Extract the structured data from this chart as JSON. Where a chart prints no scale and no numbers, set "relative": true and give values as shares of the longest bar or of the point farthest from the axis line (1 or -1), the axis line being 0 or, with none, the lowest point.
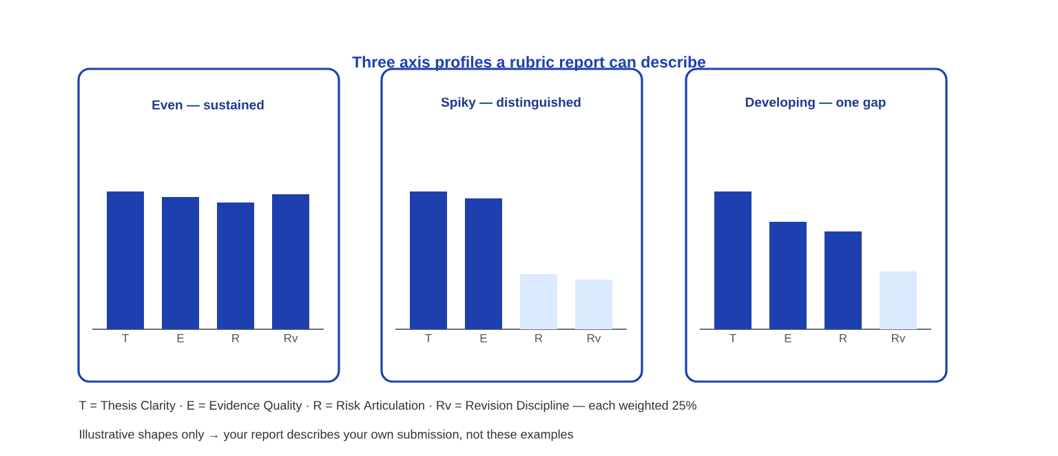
{
  "chart_data": [
    {
      "type": "other",
      "title": "Three axis profiles a rubric report can describe",
      "color": "#1e40af"
    },
    {
      "type": "bar",
      "title": "Even — sustained",
      "relative": true,
      "categories": [
        "T",
        "E",
        "R",
        "Rv"
      ],
      "values": [
        1,
        0.96,
        0.92,
        0.98
      ],
      "colors": [
        "#1e40af",
        "#1e40af",
        "#1e40af",
        "#1e40af"
      ]
    },
    {
      "type": "bar",
      "title": "Spiky — distinguished",
      "relative": true,
      "categories": [
        "T",
        "E",
        "R",
        "Rv"
      ],
      "values": [
        1,
        0.95,
        0.4,
        0.36
      ],
      "colors": [
        "#1e40af",
        "#1e40af",
        "#dbeafe",
        "#dbeafe"
      ]
    },
    {
      "type": "bar",
      "title": "Developing — one gap",
      "relative": true,
      "categories": [
        "T",
        "E",
        "R",
        "Rv"
      ],
      "values": [
        1,
        0.78,
        0.71,
        0.42
      ],
      "colors": [
        "#1e40af",
        "#1e40af",
        "#1e40af",
        "#dbeafe"
      ]
    },
    {
      "type": "other",
      "annotations": [
        "T = Thesis Clarity · E = Evidence Quality · R = Risk Articulation · Rv = Revision Discipline — each weighted 25%",
        "Illustrative shapes only → your report describes your own submission, not these examples"
      ]
    }
  ]
}
